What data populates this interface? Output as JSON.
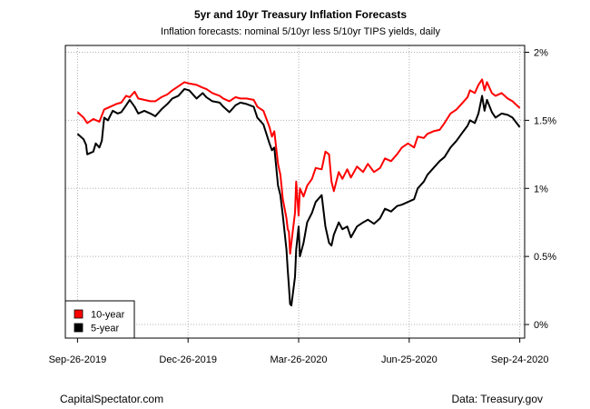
{
  "chart_data": {
    "type": "line",
    "title": "5yr and 10yr Treasury Inflation Forecasts",
    "subtitle": "Inflation forecasts: nominal 5/10yr less 5/10yr TIPS yields, daily",
    "y_axis": {
      "position": "right",
      "ylim": [
        -0.1,
        2.05
      ],
      "ticks": [
        0,
        0.5,
        1,
        1.5,
        2
      ],
      "tick_labels": [
        "0%",
        "0.5%",
        "1%",
        "1.5%",
        "2%"
      ]
    },
    "x_axis": {
      "xlim": [
        "2019-09-16",
        "2020-09-28"
      ],
      "tick_dates": [
        "2019-09-26",
        "2019-12-26",
        "2020-03-26",
        "2020-06-25",
        "2020-09-24"
      ],
      "tick_labels": [
        "Sep-26-2019",
        "Dec-26-2019",
        "Mar-26-2020",
        "Jun-25-2020",
        "Sep-24-2020"
      ]
    },
    "grid": true,
    "legend": {
      "placement": "bottom-left",
      "entries": [
        "10-year",
        "5-year"
      ]
    },
    "series": [
      {
        "name": "10-year",
        "color": "#ff0000",
        "points": [
          [
            "2019-09-26",
            1.56
          ],
          [
            "2019-10-01",
            1.52
          ],
          [
            "2019-10-04",
            1.48
          ],
          [
            "2019-10-09",
            1.51
          ],
          [
            "2019-10-14",
            1.49
          ],
          [
            "2019-10-18",
            1.58
          ],
          [
            "2019-10-23",
            1.6
          ],
          [
            "2019-10-28",
            1.62
          ],
          [
            "2019-11-01",
            1.63
          ],
          [
            "2019-11-05",
            1.68
          ],
          [
            "2019-11-08",
            1.67
          ],
          [
            "2019-11-12",
            1.71
          ],
          [
            "2019-11-15",
            1.66
          ],
          [
            "2019-11-20",
            1.65
          ],
          [
            "2019-11-25",
            1.64
          ],
          [
            "2019-11-29",
            1.64
          ],
          [
            "2019-12-04",
            1.67
          ],
          [
            "2019-12-09",
            1.69
          ],
          [
            "2019-12-13",
            1.72
          ],
          [
            "2019-12-18",
            1.75
          ],
          [
            "2019-12-23",
            1.78
          ],
          [
            "2019-12-27",
            1.77
          ],
          [
            "2020-01-02",
            1.76
          ],
          [
            "2020-01-07",
            1.74
          ],
          [
            "2020-01-10",
            1.73
          ],
          [
            "2020-01-15",
            1.7
          ],
          [
            "2020-01-21",
            1.68
          ],
          [
            "2020-01-24",
            1.66
          ],
          [
            "2020-01-29",
            1.64
          ],
          [
            "2020-02-03",
            1.67
          ],
          [
            "2020-02-07",
            1.66
          ],
          [
            "2020-02-12",
            1.66
          ],
          [
            "2020-02-18",
            1.65
          ],
          [
            "2020-02-21",
            1.6
          ],
          [
            "2020-02-26",
            1.57
          ],
          [
            "2020-03-02",
            1.45
          ],
          [
            "2020-03-04",
            1.38
          ],
          [
            "2020-03-06",
            1.42
          ],
          [
            "2020-03-09",
            1.18
          ],
          [
            "2020-03-11",
            1.1
          ],
          [
            "2020-03-13",
            0.92
          ],
          [
            "2020-03-16",
            0.78
          ],
          [
            "2020-03-17",
            0.7
          ],
          [
            "2020-03-18",
            0.68
          ],
          [
            "2020-03-19",
            0.52
          ],
          [
            "2020-03-20",
            0.6
          ],
          [
            "2020-03-23",
            0.82
          ],
          [
            "2020-03-24",
            1.05
          ],
          [
            "2020-03-26",
            0.8
          ],
          [
            "2020-03-27",
            1.0
          ],
          [
            "2020-03-30",
            0.94
          ],
          [
            "2020-04-02",
            1.02
          ],
          [
            "2020-04-06",
            1.07
          ],
          [
            "2020-04-09",
            1.15
          ],
          [
            "2020-04-14",
            1.14
          ],
          [
            "2020-04-17",
            1.27
          ],
          [
            "2020-04-20",
            1.25
          ],
          [
            "2020-04-22",
            1.05
          ],
          [
            "2020-04-24",
            0.98
          ],
          [
            "2020-04-28",
            1.12
          ],
          [
            "2020-05-01",
            1.07
          ],
          [
            "2020-05-05",
            1.14
          ],
          [
            "2020-05-08",
            1.08
          ],
          [
            "2020-05-13",
            1.16
          ],
          [
            "2020-05-18",
            1.12
          ],
          [
            "2020-05-22",
            1.18
          ],
          [
            "2020-05-27",
            1.12
          ],
          [
            "2020-06-01",
            1.15
          ],
          [
            "2020-06-05",
            1.22
          ],
          [
            "2020-06-10",
            1.2
          ],
          [
            "2020-06-15",
            1.25
          ],
          [
            "2020-06-19",
            1.3
          ],
          [
            "2020-06-24",
            1.33
          ],
          [
            "2020-06-29",
            1.3
          ],
          [
            "2020-07-02",
            1.38
          ],
          [
            "2020-07-07",
            1.37
          ],
          [
            "2020-07-10",
            1.4
          ],
          [
            "2020-07-15",
            1.42
          ],
          [
            "2020-07-20",
            1.43
          ],
          [
            "2020-07-24",
            1.48
          ],
          [
            "2020-07-29",
            1.55
          ],
          [
            "2020-08-03",
            1.58
          ],
          [
            "2020-08-07",
            1.62
          ],
          [
            "2020-08-12",
            1.67
          ],
          [
            "2020-08-14",
            1.72
          ],
          [
            "2020-08-18",
            1.7
          ],
          [
            "2020-08-21",
            1.76
          ],
          [
            "2020-08-24",
            1.8
          ],
          [
            "2020-08-26",
            1.72
          ],
          [
            "2020-08-28",
            1.78
          ],
          [
            "2020-09-01",
            1.7
          ],
          [
            "2020-09-04",
            1.68
          ],
          [
            "2020-09-09",
            1.7
          ],
          [
            "2020-09-14",
            1.66
          ],
          [
            "2020-09-18",
            1.64
          ],
          [
            "2020-09-24",
            1.59
          ]
        ]
      },
      {
        "name": "5-year",
        "color": "#000000",
        "points": [
          [
            "2019-09-26",
            1.4
          ],
          [
            "2019-10-01",
            1.36
          ],
          [
            "2019-10-03",
            1.32
          ],
          [
            "2019-10-04",
            1.25
          ],
          [
            "2019-10-09",
            1.27
          ],
          [
            "2019-10-11",
            1.33
          ],
          [
            "2019-10-14",
            1.3
          ],
          [
            "2019-10-16",
            1.35
          ],
          [
            "2019-10-18",
            1.52
          ],
          [
            "2019-10-21",
            1.5
          ],
          [
            "2019-10-25",
            1.57
          ],
          [
            "2019-10-29",
            1.55
          ],
          [
            "2019-11-01",
            1.56
          ],
          [
            "2019-11-05",
            1.61
          ],
          [
            "2019-11-08",
            1.65
          ],
          [
            "2019-11-12",
            1.6
          ],
          [
            "2019-11-15",
            1.55
          ],
          [
            "2019-11-20",
            1.57
          ],
          [
            "2019-11-25",
            1.55
          ],
          [
            "2019-11-29",
            1.53
          ],
          [
            "2019-12-04",
            1.58
          ],
          [
            "2019-12-09",
            1.62
          ],
          [
            "2019-12-13",
            1.66
          ],
          [
            "2019-12-18",
            1.68
          ],
          [
            "2019-12-23",
            1.73
          ],
          [
            "2019-12-27",
            1.72
          ],
          [
            "2020-01-02",
            1.66
          ],
          [
            "2020-01-07",
            1.7
          ],
          [
            "2020-01-10",
            1.67
          ],
          [
            "2020-01-15",
            1.64
          ],
          [
            "2020-01-21",
            1.63
          ],
          [
            "2020-01-24",
            1.6
          ],
          [
            "2020-01-29",
            1.56
          ],
          [
            "2020-02-03",
            1.61
          ],
          [
            "2020-02-07",
            1.63
          ],
          [
            "2020-02-12",
            1.62
          ],
          [
            "2020-02-18",
            1.6
          ],
          [
            "2020-02-21",
            1.52
          ],
          [
            "2020-02-26",
            1.47
          ],
          [
            "2020-03-02",
            1.33
          ],
          [
            "2020-03-04",
            1.28
          ],
          [
            "2020-03-06",
            1.3
          ],
          [
            "2020-03-09",
            1.02
          ],
          [
            "2020-03-11",
            0.95
          ],
          [
            "2020-03-13",
            0.8
          ],
          [
            "2020-03-16",
            0.55
          ],
          [
            "2020-03-17",
            0.4
          ],
          [
            "2020-03-18",
            0.28
          ],
          [
            "2020-03-19",
            0.15
          ],
          [
            "2020-03-20",
            0.14
          ],
          [
            "2020-03-23",
            0.35
          ],
          [
            "2020-03-24",
            0.55
          ],
          [
            "2020-03-26",
            0.72
          ],
          [
            "2020-03-27",
            0.5
          ],
          [
            "2020-03-30",
            0.6
          ],
          [
            "2020-04-02",
            0.75
          ],
          [
            "2020-04-06",
            0.82
          ],
          [
            "2020-04-09",
            0.9
          ],
          [
            "2020-04-14",
            0.95
          ],
          [
            "2020-04-17",
            0.72
          ],
          [
            "2020-04-20",
            0.6
          ],
          [
            "2020-04-22",
            0.58
          ],
          [
            "2020-04-24",
            0.66
          ],
          [
            "2020-04-28",
            0.75
          ],
          [
            "2020-05-01",
            0.7
          ],
          [
            "2020-05-05",
            0.72
          ],
          [
            "2020-05-08",
            0.64
          ],
          [
            "2020-05-13",
            0.72
          ],
          [
            "2020-05-18",
            0.75
          ],
          [
            "2020-05-22",
            0.77
          ],
          [
            "2020-05-27",
            0.74
          ],
          [
            "2020-06-01",
            0.78
          ],
          [
            "2020-06-05",
            0.85
          ],
          [
            "2020-06-10",
            0.83
          ],
          [
            "2020-06-15",
            0.87
          ],
          [
            "2020-06-19",
            0.88
          ],
          [
            "2020-06-24",
            0.9
          ],
          [
            "2020-06-29",
            0.92
          ],
          [
            "2020-07-02",
            1.0
          ],
          [
            "2020-07-07",
            1.05
          ],
          [
            "2020-07-10",
            1.1
          ],
          [
            "2020-07-15",
            1.15
          ],
          [
            "2020-07-20",
            1.2
          ],
          [
            "2020-07-24",
            1.23
          ],
          [
            "2020-07-29",
            1.3
          ],
          [
            "2020-08-03",
            1.35
          ],
          [
            "2020-08-07",
            1.4
          ],
          [
            "2020-08-12",
            1.46
          ],
          [
            "2020-08-14",
            1.5
          ],
          [
            "2020-08-18",
            1.48
          ],
          [
            "2020-08-21",
            1.55
          ],
          [
            "2020-08-24",
            1.68
          ],
          [
            "2020-08-26",
            1.57
          ],
          [
            "2020-08-28",
            1.65
          ],
          [
            "2020-09-01",
            1.56
          ],
          [
            "2020-09-04",
            1.52
          ],
          [
            "2020-09-09",
            1.55
          ],
          [
            "2020-09-14",
            1.54
          ],
          [
            "2020-09-18",
            1.52
          ],
          [
            "2020-09-24",
            1.45
          ]
        ]
      }
    ]
  },
  "footer": {
    "left": "CapitalSpectator.com",
    "right": "Data: Treasury.gov"
  }
}
